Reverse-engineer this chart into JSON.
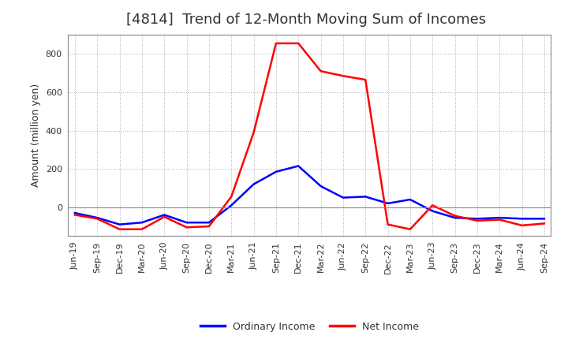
{
  "title": "[4814]  Trend of 12-Month Moving Sum of Incomes",
  "ylabel": "Amount (million yen)",
  "x_labels": [
    "Jun-19",
    "Sep-19",
    "Dec-19",
    "Mar-20",
    "Jun-20",
    "Sep-20",
    "Dec-20",
    "Mar-21",
    "Jun-21",
    "Sep-21",
    "Dec-21",
    "Mar-22",
    "Jun-22",
    "Sep-22",
    "Dec-22",
    "Mar-23",
    "Jun-23",
    "Sep-23",
    "Dec-23",
    "Mar-24",
    "Jun-24",
    "Sep-24"
  ],
  "ordinary_income": [
    -30,
    -55,
    -90,
    -80,
    -40,
    -80,
    -80,
    10,
    120,
    185,
    215,
    110,
    50,
    55,
    20,
    40,
    -20,
    -55,
    -60,
    -55,
    -60,
    -60
  ],
  "net_income": [
    -40,
    -60,
    -115,
    -115,
    -50,
    -105,
    -100,
    55,
    390,
    855,
    855,
    710,
    685,
    665,
    -90,
    -115,
    10,
    -45,
    -70,
    -65,
    -95,
    -85
  ],
  "ordinary_color": "#0000ff",
  "net_color": "#ff0000",
  "ylim": [
    -150,
    900
  ],
  "yticks": [
    0,
    200,
    400,
    600,
    800
  ],
  "background_color": "#ffffff",
  "grid_color": "#999999",
  "title_color": "#333333",
  "legend_labels": [
    "Ordinary Income",
    "Net Income"
  ],
  "title_fontsize": 13,
  "ylabel_fontsize": 9,
  "tick_fontsize": 8,
  "legend_fontsize": 9,
  "line_width": 1.8
}
